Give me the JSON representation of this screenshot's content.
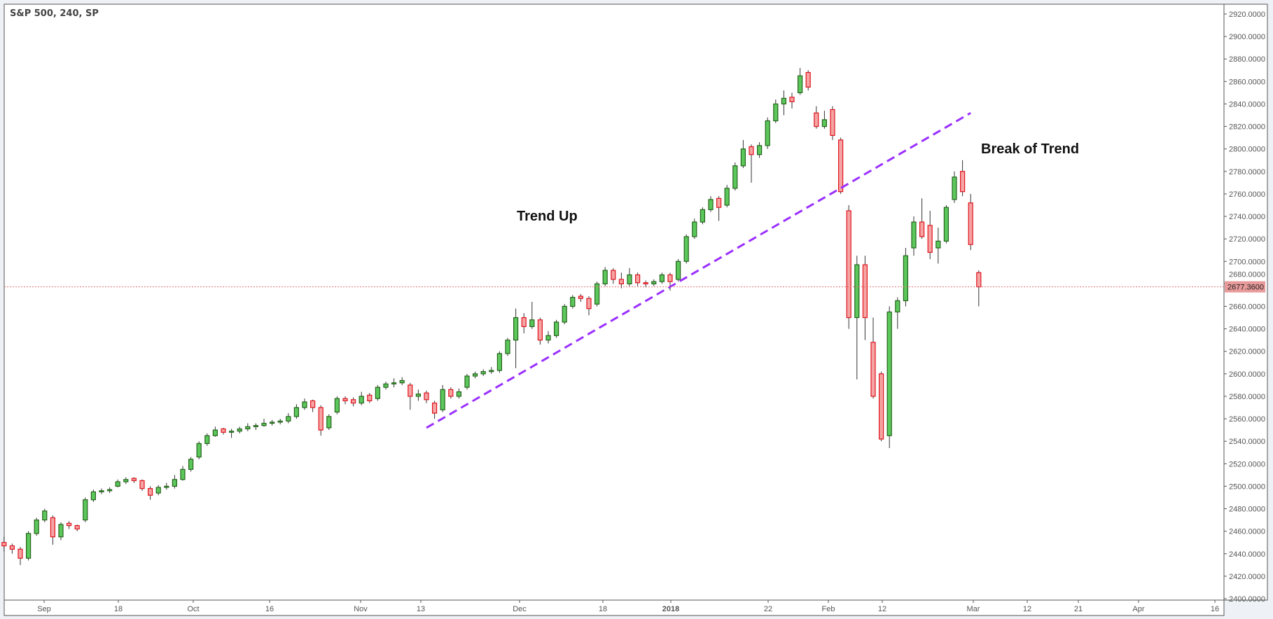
{
  "header": {
    "title": "S&P 500, 240, SP"
  },
  "chart_data": {
    "type": "candlestick",
    "title": "S&P 500, 240, SP",
    "ylim": [
      2400,
      2920
    ],
    "y_ticks": [
      "2920.0000",
      "2900.0000",
      "2880.0000",
      "2860.0000",
      "2840.0000",
      "2820.0000",
      "2800.0000",
      "2780.0000",
      "2760.0000",
      "2740.0000",
      "2720.0000",
      "2700.0000",
      "2680.0000",
      "2660.0000",
      "2640.0000",
      "2620.0000",
      "2600.0000",
      "2580.0000",
      "2560.0000",
      "2540.0000",
      "2520.0000",
      "2500.0000",
      "2480.0000",
      "2460.0000",
      "2440.0000",
      "2420.0000",
      "2400.0000"
    ],
    "x_ticks": [
      "Sep",
      "18",
      "Oct",
      "16",
      "Nov",
      "13",
      "Dec",
      "18",
      "2018",
      "22",
      "Feb",
      "12",
      "Mar",
      "12",
      "21",
      "Apr",
      "16"
    ],
    "last_price": {
      "value": 2677.36,
      "label": "2677.3600",
      "color": "#e89a9a"
    },
    "colors": {
      "up_fill": "#5cc85c",
      "up_border": "#24631a",
      "down_fill": "#f5a3a3",
      "down_border": "#e0141e",
      "trendline": "#9b30ff"
    },
    "grid": false,
    "annotations": [
      {
        "text": "Trend Up"
      },
      {
        "text": "Break of Trend"
      }
    ],
    "trendline": {
      "start": {
        "bar": 52,
        "price": 2552
      },
      "end": {
        "bar": 119,
        "price": 2832
      },
      "style": "dashed"
    },
    "ohlc": [
      [
        2450,
        2455,
        2442,
        2447
      ],
      [
        2447,
        2449,
        2440,
        2444
      ],
      [
        2444,
        2446,
        2430,
        2436
      ],
      [
        2436,
        2460,
        2434,
        2458
      ],
      [
        2458,
        2472,
        2456,
        2470
      ],
      [
        2470,
        2480,
        2468,
        2478
      ],
      [
        2472,
        2474,
        2448,
        2455
      ],
      [
        2455,
        2468,
        2452,
        2466
      ],
      [
        2467,
        2469,
        2462,
        2465
      ],
      [
        2465,
        2466,
        2460,
        2462
      ],
      [
        2470,
        2490,
        2468,
        2488
      ],
      [
        2488,
        2497,
        2486,
        2495
      ],
      [
        2495,
        2498,
        2493,
        2496
      ],
      [
        2496,
        2499,
        2494,
        2497
      ],
      [
        2500,
        2506,
        2499,
        2504
      ],
      [
        2504,
        2508,
        2502,
        2506
      ],
      [
        2507,
        2508,
        2503,
        2505
      ],
      [
        2505,
        2506,
        2496,
        2498
      ],
      [
        2498,
        2500,
        2488,
        2492
      ],
      [
        2494,
        2501,
        2492,
        2499
      ],
      [
        2499,
        2503,
        2497,
        2500
      ],
      [
        2500,
        2510,
        2498,
        2506
      ],
      [
        2506,
        2518,
        2505,
        2515
      ],
      [
        2515,
        2526,
        2513,
        2524
      ],
      [
        2526,
        2540,
        2524,
        2538
      ],
      [
        2538,
        2547,
        2536,
        2545
      ],
      [
        2545,
        2553,
        2544,
        2550
      ],
      [
        2551,
        2552,
        2546,
        2548
      ],
      [
        2548,
        2551,
        2543,
        2549
      ],
      [
        2549,
        2553,
        2547,
        2551
      ],
      [
        2551,
        2556,
        2549,
        2553
      ],
      [
        2553,
        2556,
        2550,
        2554
      ],
      [
        2554,
        2560,
        2553,
        2556
      ],
      [
        2556,
        2559,
        2554,
        2557
      ],
      [
        2557,
        2560,
        2555,
        2558
      ],
      [
        2558,
        2565,
        2556,
        2562
      ],
      [
        2562,
        2573,
        2560,
        2570
      ],
      [
        2570,
        2578,
        2568,
        2575
      ],
      [
        2576,
        2577,
        2566,
        2570
      ],
      [
        2570,
        2572,
        2545,
        2550
      ],
      [
        2552,
        2564,
        2550,
        2562
      ],
      [
        2566,
        2580,
        2564,
        2578
      ],
      [
        2578,
        2580,
        2573,
        2576
      ],
      [
        2577,
        2579,
        2571,
        2574
      ],
      [
        2574,
        2584,
        2572,
        2580
      ],
      [
        2581,
        2583,
        2574,
        2576
      ],
      [
        2578,
        2590,
        2576,
        2588
      ],
      [
        2588,
        2593,
        2586,
        2591
      ],
      [
        2591,
        2596,
        2588,
        2592
      ],
      [
        2592,
        2597,
        2590,
        2594
      ],
      [
        2590,
        2592,
        2568,
        2580
      ],
      [
        2580,
        2586,
        2576,
        2582
      ],
      [
        2583,
        2585,
        2574,
        2577
      ],
      [
        2574,
        2576,
        2560,
        2565
      ],
      [
        2568,
        2590,
        2566,
        2586
      ],
      [
        2586,
        2588,
        2578,
        2580
      ],
      [
        2580,
        2587,
        2578,
        2584
      ],
      [
        2588,
        2600,
        2586,
        2598
      ],
      [
        2598,
        2602,
        2596,
        2600
      ],
      [
        2600,
        2604,
        2598,
        2602
      ],
      [
        2602,
        2606,
        2600,
        2603
      ],
      [
        2603,
        2620,
        2601,
        2618
      ],
      [
        2618,
        2632,
        2616,
        2630
      ],
      [
        2630,
        2658,
        2605,
        2650
      ],
      [
        2650,
        2654,
        2636,
        2642
      ],
      [
        2642,
        2664,
        2640,
        2648
      ],
      [
        2648,
        2650,
        2626,
        2630
      ],
      [
        2630,
        2638,
        2627,
        2634
      ],
      [
        2634,
        2648,
        2632,
        2646
      ],
      [
        2646,
        2662,
        2644,
        2660
      ],
      [
        2660,
        2670,
        2658,
        2668
      ],
      [
        2669,
        2671,
        2664,
        2667
      ],
      [
        2667,
        2669,
        2652,
        2658
      ],
      [
        2662,
        2682,
        2660,
        2680
      ],
      [
        2680,
        2695,
        2678,
        2692
      ],
      [
        2692,
        2694,
        2680,
        2684
      ],
      [
        2684,
        2690,
        2676,
        2680
      ],
      [
        2680,
        2694,
        2678,
        2688
      ],
      [
        2688,
        2690,
        2678,
        2681
      ],
      [
        2681,
        2683,
        2677,
        2680
      ],
      [
        2680,
        2684,
        2678,
        2682
      ],
      [
        2682,
        2690,
        2680,
        2688
      ],
      [
        2688,
        2690,
        2674,
        2682
      ],
      [
        2684,
        2702,
        2682,
        2700
      ],
      [
        2700,
        2724,
        2698,
        2722
      ],
      [
        2722,
        2738,
        2720,
        2735
      ],
      [
        2735,
        2748,
        2733,
        2746
      ],
      [
        2746,
        2758,
        2744,
        2755
      ],
      [
        2756,
        2758,
        2736,
        2748
      ],
      [
        2750,
        2768,
        2748,
        2765
      ],
      [
        2765,
        2788,
        2763,
        2785
      ],
      [
        2785,
        2808,
        2783,
        2800
      ],
      [
        2802,
        2804,
        2770,
        2795
      ],
      [
        2795,
        2806,
        2792,
        2803
      ],
      [
        2803,
        2828,
        2800,
        2825
      ],
      [
        2825,
        2844,
        2823,
        2840
      ],
      [
        2840,
        2852,
        2830,
        2845
      ],
      [
        2846,
        2850,
        2836,
        2842
      ],
      [
        2850,
        2872,
        2848,
        2865
      ],
      [
        2868,
        2870,
        2852,
        2855
      ],
      [
        2832,
        2838,
        2818,
        2820
      ],
      [
        2820,
        2834,
        2818,
        2826
      ],
      [
        2835,
        2838,
        2808,
        2812
      ],
      [
        2808,
        2810,
        2760,
        2762
      ],
      [
        2745,
        2750,
        2640,
        2650
      ],
      [
        2650,
        2705,
        2595,
        2697
      ],
      [
        2697,
        2705,
        2630,
        2650
      ],
      [
        2628,
        2650,
        2578,
        2580
      ],
      [
        2600,
        2602,
        2540,
        2542
      ],
      [
        2545,
        2660,
        2534,
        2655
      ],
      [
        2655,
        2668,
        2640,
        2665
      ],
      [
        2665,
        2712,
        2660,
        2705
      ],
      [
        2712,
        2740,
        2705,
        2735
      ],
      [
        2735,
        2756,
        2720,
        2722
      ],
      [
        2732,
        2745,
        2702,
        2708
      ],
      [
        2712,
        2730,
        2698,
        2718
      ],
      [
        2718,
        2750,
        2716,
        2748
      ],
      [
        2755,
        2780,
        2752,
        2775
      ],
      [
        2780,
        2790,
        2758,
        2762
      ],
      [
        2752,
        2760,
        2710,
        2715
      ],
      [
        2690,
        2692,
        2660,
        2677.36
      ]
    ]
  }
}
